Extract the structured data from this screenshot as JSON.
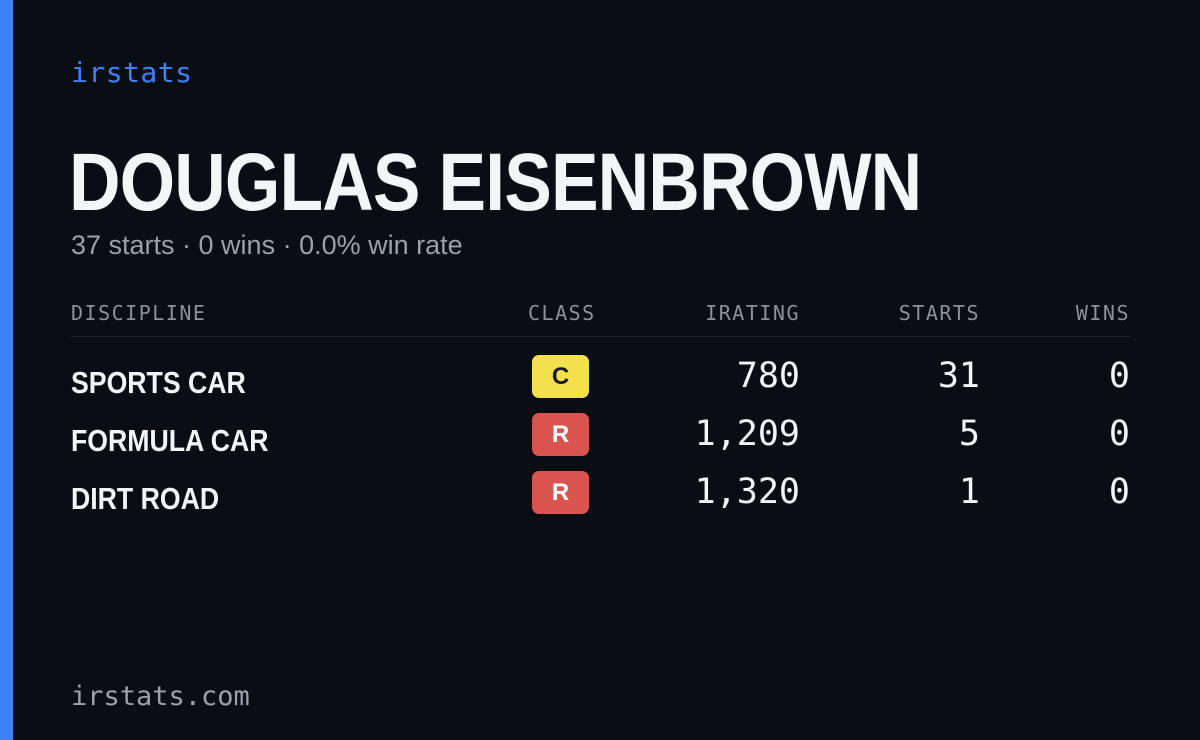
{
  "colors": {
    "background": "#0b0d14",
    "accent": "#3b82f6",
    "brand_text": "#3b82f6",
    "muted_text": "#9aa1ad",
    "class_c": "#f2e14c",
    "class_c_text": "#1a1a1a",
    "class_r": "#d9534f",
    "class_r_text": "#ffffff"
  },
  "brand": "irstats",
  "driver": {
    "name": "DOUGLAS EISENBROWN",
    "summary": "37 starts · 0 wins · 0.0% win rate"
  },
  "table": {
    "headers": {
      "discipline": "DISCIPLINE",
      "class": "CLASS",
      "irating": "IRATING",
      "starts": "STARTS",
      "wins": "WINS"
    },
    "rows": [
      {
        "discipline": "SPORTS CAR",
        "class": "C",
        "irating": "780",
        "starts": "31",
        "wins": "0"
      },
      {
        "discipline": "FORMULA CAR",
        "class": "R",
        "irating": "1,209",
        "starts": "5",
        "wins": "0"
      },
      {
        "discipline": "DIRT ROAD",
        "class": "R",
        "irating": "1,320",
        "starts": "1",
        "wins": "0"
      }
    ]
  },
  "footer": "irstats.com"
}
